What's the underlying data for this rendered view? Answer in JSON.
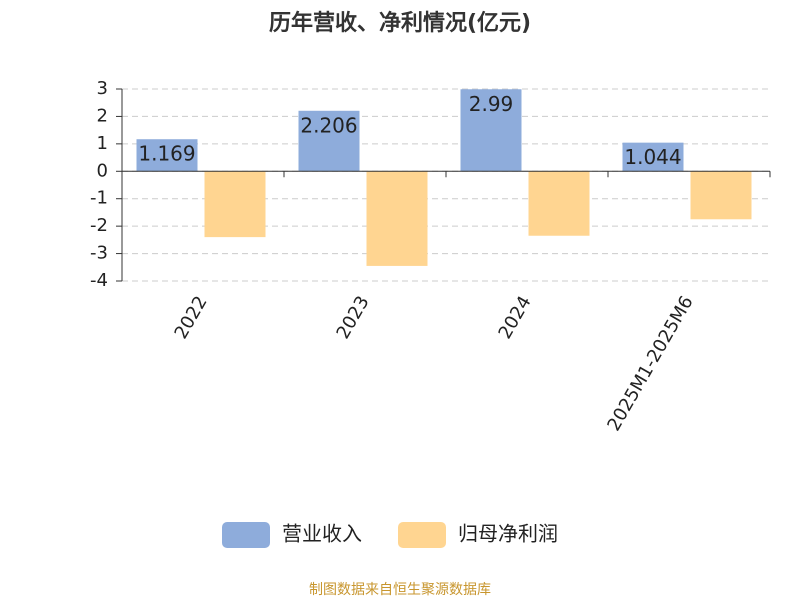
{
  "chart_data": {
    "type": "bar",
    "title": "历年营收、净利情况(亿元)",
    "categories": [
      "2022",
      "2023",
      "2024",
      "2025M1-2025M6"
    ],
    "series": [
      {
        "name": "营业收入",
        "color": "#8eacdb",
        "values": [
          1.169,
          2.206,
          2.99,
          1.044
        ],
        "labels": true
      },
      {
        "name": "归母净利润",
        "color": "#ffd591",
        "values": [
          -2.4,
          -3.45,
          -2.35,
          -1.75
        ],
        "labels": false
      }
    ],
    "ylim": [
      -4,
      3
    ],
    "yticks": [
      -4,
      -3,
      -2,
      -1,
      0,
      1,
      2,
      3
    ],
    "grid": true,
    "legend": "bottom",
    "source": "制图数据来自恒生聚源数据库"
  }
}
